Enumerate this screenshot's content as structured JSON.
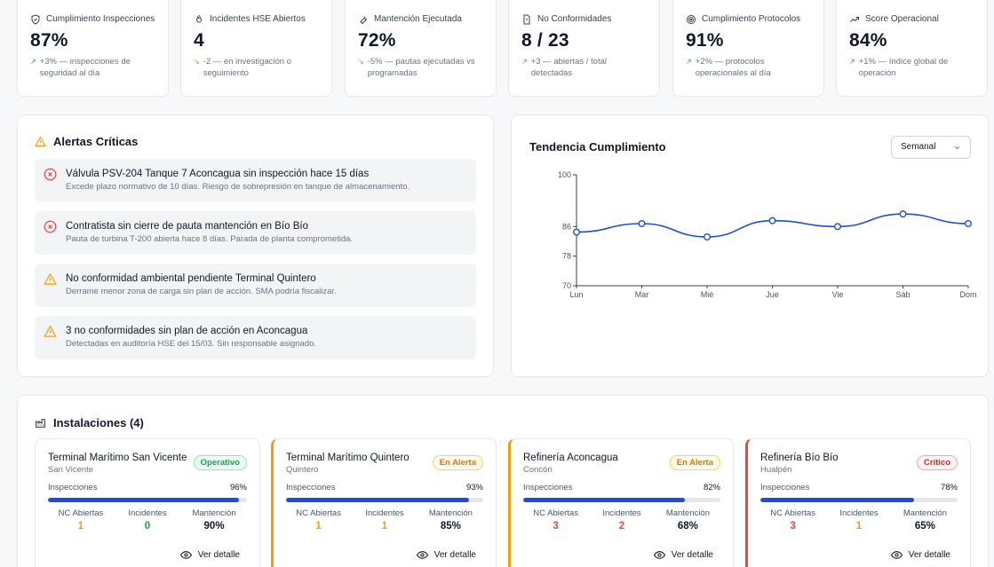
{
  "kpis": [
    {
      "icon": "shield-icon",
      "label": "Cumplimiento Inspecciones",
      "value": "87%",
      "trend": "up",
      "note": "+3% — inspecciones de seguridad al día"
    },
    {
      "icon": "flame-icon",
      "label": "Incidentes HSE Abiertos",
      "value": "4",
      "trend": "down",
      "note": "-2 — en investigación o seguimiento"
    },
    {
      "icon": "wrench-icon",
      "label": "Mantención Ejecutada",
      "value": "72%",
      "trend": "down",
      "note": "-5% — pautas ejecutadas vs programadas"
    },
    {
      "icon": "file-alert-icon",
      "label": "No Conformidades",
      "value": "8 / 23",
      "trend": "upbad",
      "note": "+3 — abiertas / total detectadas"
    },
    {
      "icon": "target-icon",
      "label": "Cumplimiento Protocolos",
      "value": "91%",
      "trend": "up",
      "note": "+2% — protocolos operacionales al día"
    },
    {
      "icon": "trending-up-icon",
      "label": "Score Operacional",
      "value": "84%",
      "trend": "up",
      "note": "+1% — índice global de operación"
    }
  ],
  "alerts": {
    "title": "Alertas Críticas",
    "items": [
      {
        "severity": "critical",
        "title": "Válvula PSV-204 Tanque 7 Aconcagua sin inspección hace 15 días",
        "desc": "Excede plazo normativo de 10 días. Riesgo de sobrepresión en tanque de almacenamiento."
      },
      {
        "severity": "critical",
        "title": "Contratista sin cierre de pauta mantención en Bío Bío",
        "desc": "Pauta de turbina T-200 abierta hace 8 días. Parada de planta comprometida."
      },
      {
        "severity": "warning",
        "title": "No conformidad ambiental pendiente Terminal Quintero",
        "desc": "Derrame menor zona de carga sin plan de acción. SMA podría fiscalizar."
      },
      {
        "severity": "warning",
        "title": "3 no conformidades sin plan de acción en Aconcagua",
        "desc": "Detectadas en auditoría HSE del 15/03. Sin responsable asignado."
      }
    ]
  },
  "trend": {
    "title": "Tendencia Cumplimiento",
    "period": "Semanal"
  },
  "chart_data": {
    "type": "line",
    "title": "Tendencia Cumplimiento",
    "categories": [
      "Lun",
      "Mar",
      "Mié",
      "Jue",
      "Vie",
      "Sáb",
      "Dom"
    ],
    "values": [
      84.5,
      86.8,
      83.2,
      87.6,
      86.0,
      89.4,
      86.8
    ],
    "yticks": [
      70,
      78,
      86,
      100
    ],
    "ylim": [
      70,
      100
    ],
    "grid": false,
    "color": "#1d4ed8"
  },
  "installations": {
    "title": "Instalaciones (4)",
    "labels": {
      "inspections": "Inspecciones",
      "nc": "NC Abiertas",
      "incidents": "Incidentes",
      "maintenance": "Mantención",
      "detail": "Ver detalle"
    },
    "items": [
      {
        "name": "Terminal Marítimo San Vicente",
        "city": "San Vicente",
        "status": "Operativo",
        "level": "ok",
        "inspections": "96%",
        "inspections_value": 0.96,
        "nc": "1",
        "nc_color": "#f59e0b",
        "incidents": "0",
        "incidents_color": "#16a34a",
        "maintenance": "90%"
      },
      {
        "name": "Terminal Marítimo Quintero",
        "city": "Quintero",
        "status": "En Alerta",
        "level": "warn",
        "inspections": "93%",
        "inspections_value": 0.93,
        "nc": "1",
        "nc_color": "#f59e0b",
        "incidents": "1",
        "incidents_color": "#f59e0b",
        "maintenance": "85%"
      },
      {
        "name": "Refinería Aconcagua",
        "city": "Concón",
        "status": "En Alerta",
        "level": "warn",
        "inspections": "82%",
        "inspections_value": 0.82,
        "nc": "3",
        "nc_color": "#ef4444",
        "incidents": "2",
        "incidents_color": "#ef4444",
        "maintenance": "68%"
      },
      {
        "name": "Refinería Bío Bío",
        "city": "Hualpén",
        "status": "Crítico",
        "level": "crit",
        "inspections": "78%",
        "inspections_value": 0.78,
        "nc": "3",
        "nc_color": "#ef4444",
        "incidents": "1",
        "incidents_color": "#f59e0b",
        "maintenance": "65%"
      }
    ]
  }
}
